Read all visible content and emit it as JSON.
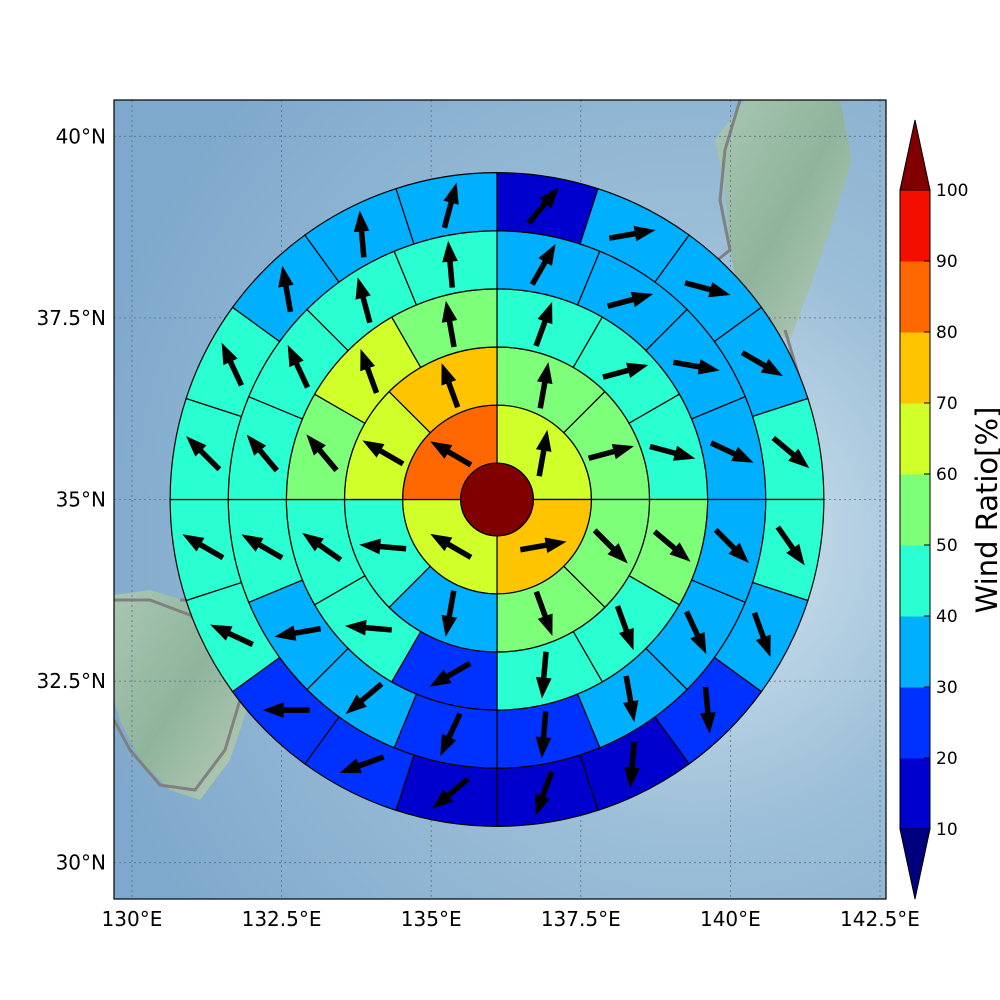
{
  "chart_data": {
    "type": "heatmap",
    "subtype": "polar-sector-wind-map",
    "map": {
      "lon_range": [
        129.7,
        142.6
      ],
      "lat_range": [
        29.5,
        40.5
      ],
      "x_ticks": [
        "130°E",
        "132.5°E",
        "135°E",
        "137.5°E",
        "140°E",
        "142.5°E"
      ],
      "x_tick_values": [
        130,
        132.5,
        135,
        137.5,
        140,
        142.5
      ],
      "y_ticks": [
        "40°N",
        "37.5°N",
        "35°N",
        "32.5°N",
        "30°N"
      ],
      "y_tick_values": [
        40,
        37.5,
        35,
        32.5,
        30
      ],
      "grid": true,
      "center": {
        "lon": 136.1,
        "lat": 35.0
      }
    },
    "colorbar": {
      "label": "Wind Ratio[%]",
      "tick_labels": [
        "10",
        "20",
        "30",
        "40",
        "50",
        "60",
        "70",
        "80",
        "90",
        "100"
      ],
      "levels": [
        10,
        20,
        30,
        40,
        50,
        60,
        70,
        80,
        90,
        100
      ],
      "colors": [
        "#0000ce",
        "#0032ff",
        "#00b0ff",
        "#29ffd0",
        "#7dff7a",
        "#d0ff29",
        "#ffc400",
        "#ff6800",
        "#f40e00"
      ],
      "under_color": "#00007f",
      "over_color": "#800000",
      "extend": "both"
    },
    "center_cell": {
      "ratio": 100,
      "wind_dir_deg": null
    },
    "ring_radii_deg_lat": [
      0.5,
      1.3,
      2.1,
      2.9,
      3.7,
      4.5
    ],
    "rings": [
      {
        "ring": 1,
        "sectors": 4,
        "ratio": [
          65,
          75,
          65,
          85
        ],
        "wind_dir_deg": [
          10,
          80,
          300,
          300
        ]
      },
      {
        "ring": 2,
        "sectors": 8,
        "ratio": [
          55,
          55,
          55,
          55,
          35,
          45,
          65,
          75
        ],
        "wind_dir_deg": [
          10,
          75,
          135,
          160,
          190,
          275,
          300,
          340
        ]
      },
      {
        "ring": 3,
        "sectors": 12,
        "ratio": [
          45,
          45,
          45,
          55,
          45,
          45,
          25,
          45,
          45,
          55,
          65,
          55
        ],
        "wind_dir_deg": [
          20,
          75,
          105,
          130,
          160,
          185,
          240,
          275,
          305,
          320,
          340,
          350
        ]
      },
      {
        "ring": 4,
        "sectors": 16,
        "ratio": [
          35,
          35,
          35,
          35,
          35,
          35,
          35,
          25,
          25,
          35,
          35,
          45,
          45,
          45,
          45,
          45
        ],
        "wind_dir_deg": [
          30,
          75,
          100,
          115,
          135,
          155,
          170,
          185,
          205,
          230,
          260,
          300,
          320,
          335,
          345,
          355
        ]
      },
      {
        "ring": 5,
        "sectors": 20,
        "ratio": [
          15,
          35,
          35,
          35,
          45,
          45,
          35,
          25,
          15,
          15,
          15,
          25,
          25,
          45,
          45,
          45,
          45,
          35,
          35,
          35
        ],
        "wind_dir_deg": [
          40,
          80,
          105,
          120,
          130,
          145,
          160,
          175,
          185,
          200,
          230,
          250,
          270,
          295,
          300,
          315,
          335,
          350,
          355,
          15
        ]
      }
    ]
  }
}
